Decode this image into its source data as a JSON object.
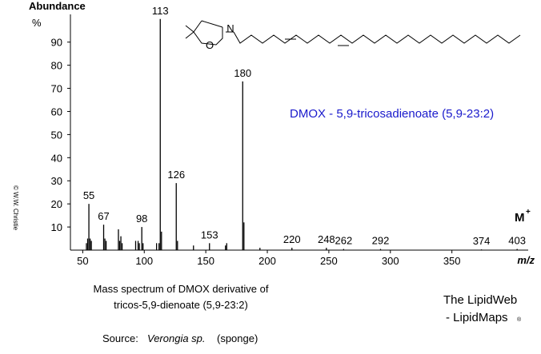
{
  "chart_data": {
    "type": "stick",
    "y_label": "Abundance",
    "y_unit": "%",
    "x_label": "m/z",
    "molecular_ion": "M",
    "molecular_ion_sup": "+",
    "title": "DMOX - 5,9-tricosadienoate (5,9-23:2)",
    "caption": [
      "Mass spectrum of DMOX derivative of",
      "tricos-5,9-dienoate (5,9-23:2)"
    ],
    "source_label": "Source:",
    "source_species": "Verongia sp.",
    "source_note": "(sponge)",
    "brand": [
      "The LipidWeb",
      "- LipidMaps",
      "®"
    ],
    "copyright": "© W.W. Christie",
    "structure_atoms": [
      "N",
      "O"
    ],
    "color": "#000000",
    "x": [
      53,
      54,
      55,
      56,
      57,
      67,
      68,
      69,
      79,
      80,
      81,
      82,
      93,
      95,
      96,
      98,
      99,
      110,
      112,
      113,
      114,
      126,
      127,
      140,
      153,
      166,
      167,
      180,
      181,
      194,
      220,
      248,
      262,
      292,
      374,
      403
    ],
    "values": [
      3,
      5,
      20,
      5,
      4,
      11,
      5,
      4,
      9,
      4,
      6,
      3,
      4,
      4,
      3,
      10,
      3,
      3,
      3,
      100,
      8,
      29,
      4,
      2,
      3,
      2,
      3,
      73,
      12,
      1,
      1,
      1,
      0.5,
      0.5,
      0.3,
      0.5
    ],
    "peak_labels": [
      null,
      null,
      "55",
      null,
      null,
      "67",
      null,
      null,
      null,
      null,
      null,
      null,
      null,
      null,
      null,
      "98",
      null,
      null,
      null,
      "113",
      null,
      "126",
      null,
      null,
      "153",
      null,
      null,
      "180",
      null,
      null,
      "220",
      "248",
      "262",
      "292",
      "374",
      "403"
    ],
    "xlim": [
      40,
      412
    ],
    "ylim": [
      0,
      102
    ],
    "xticks": [
      50,
      100,
      150,
      200,
      250,
      300,
      350
    ],
    "yticks": [
      10,
      20,
      30,
      40,
      50,
      60,
      70,
      80,
      90
    ]
  }
}
